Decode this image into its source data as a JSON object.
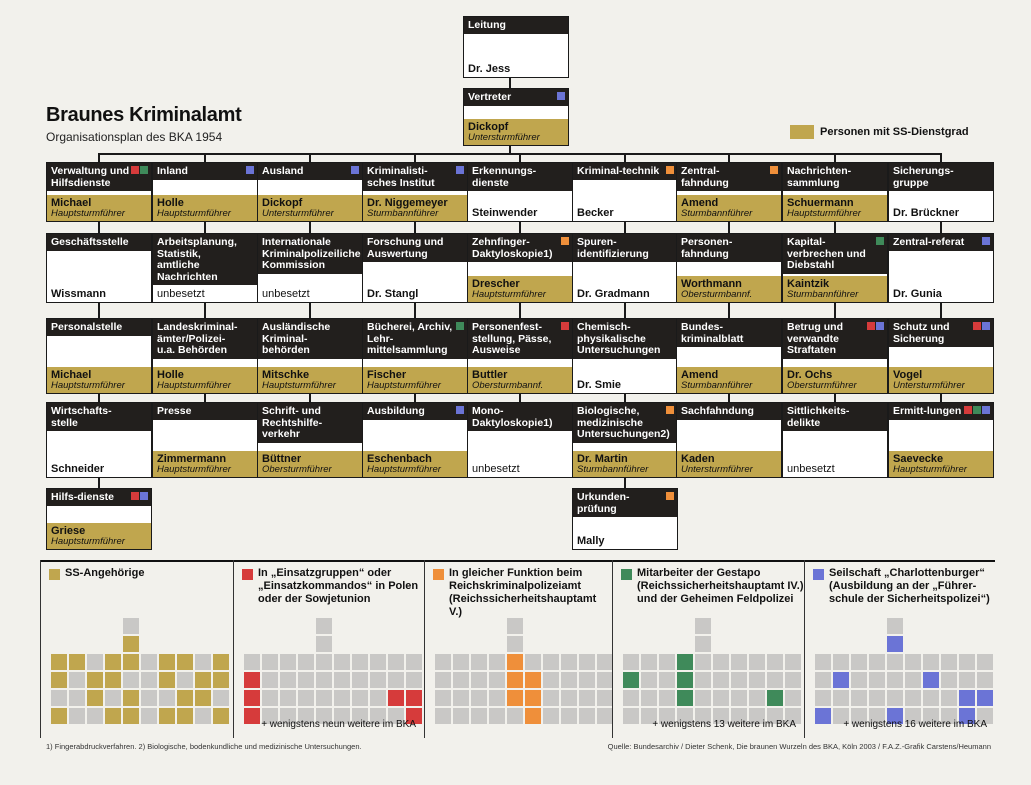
{
  "header": {
    "title": "Braunes Kriminalamt",
    "subtitle": "Organisationsplan des BKA 1954",
    "legend_label": "Personen mit SS-Dienstgrad"
  },
  "colors": {
    "ss": "#c0a64e",
    "einsatzgruppen": "#d63b3b",
    "rsha5": "#ef8f3a",
    "gestapo": "#3f8a5a",
    "charlottenburger": "#6b74d6",
    "empty": "#c9c8c6",
    "dark": "#221f1d"
  },
  "top": [
    {
      "head": "Leitung",
      "name": "Dr. Jess",
      "rank": "",
      "ss": false,
      "marks": []
    },
    {
      "head": "Vertreter",
      "name": "Dickopf",
      "rank": "Untersturmführer",
      "ss": true,
      "marks": [
        "blue"
      ]
    }
  ],
  "columns": [
    [
      {
        "head": "Verwaltung und Hilfsdienste",
        "name": "Michael",
        "rank": "Hauptsturmführer",
        "ss": true,
        "marks": [
          "red",
          "green"
        ]
      },
      {
        "head": "Geschäftsstelle",
        "name": "Wissmann",
        "rank": "",
        "ss": false,
        "marks": []
      },
      {
        "head": "Personalstelle",
        "name": "Michael",
        "rank": "Hauptsturmführer",
        "ss": true,
        "marks": []
      },
      {
        "head": "Wirtschafts-stelle",
        "name": "Schneider",
        "rank": "",
        "ss": false,
        "marks": []
      },
      {
        "head": "Hilfs-dienste",
        "name": "Griese",
        "rank": "Hauptsturmführer",
        "ss": true,
        "marks": [
          "red",
          "blue"
        ]
      }
    ],
    [
      {
        "head": "Inland",
        "name": "Holle",
        "rank": "Hauptsturmführer",
        "ss": true,
        "marks": [
          "blue"
        ]
      },
      {
        "head": "Arbeitsplanung, Statistik, amtliche Nachrichten",
        "name": "unbesetzt",
        "rank": "",
        "ss": false,
        "empty": true,
        "marks": []
      },
      {
        "head": "Landeskriminal-ämter/Polizei-u.a. Behörden",
        "name": "Holle",
        "rank": "Hauptsturmführer",
        "ss": true,
        "marks": []
      },
      {
        "head": "Presse",
        "name": "Zimmermann",
        "rank": "Hauptsturmführer",
        "ss": true,
        "marks": []
      }
    ],
    [
      {
        "head": "Ausland",
        "name": "Dickopf",
        "rank": "Untersturmführer",
        "ss": true,
        "marks": [
          "blue"
        ]
      },
      {
        "head": "Internationale Kriminalpolizeiliche Kommission",
        "name": "unbesetzt",
        "rank": "",
        "ss": false,
        "empty": true,
        "marks": []
      },
      {
        "head": "Ausländische Kriminal-behörden",
        "name": "Mitschke",
        "rank": "Hauptsturmführer",
        "ss": true,
        "marks": []
      },
      {
        "head": "Schrift- und Rechtshilfe-verkehr",
        "name": "Büttner",
        "rank": "Obersturmführer",
        "ss": true,
        "marks": []
      }
    ],
    [
      {
        "head": "Kriminalisti-sches Institut",
        "name": "Dr. Niggemeyer",
        "rank": "Sturmbannführer",
        "ss": true,
        "marks": [
          "blue"
        ]
      },
      {
        "head": "Forschung und Auswertung",
        "name": "Dr. Stangl",
        "rank": "",
        "ss": false,
        "marks": []
      },
      {
        "head": "Bücherei, Archiv, Lehr-mittelsammlung",
        "name": "Fischer",
        "rank": "Hauptsturmführer",
        "ss": true,
        "marks": [
          "green"
        ]
      },
      {
        "head": "Ausbildung",
        "name": "Eschenbach",
        "rank": "Hauptsturmführer",
        "ss": true,
        "marks": [
          "blue"
        ]
      }
    ],
    [
      {
        "head": "Erkennungs-dienste",
        "name": "Steinwender",
        "rank": "",
        "ss": false,
        "marks": []
      },
      {
        "head": "Zehnfinger-Daktyloskopie1)",
        "name": "Drescher",
        "rank": "Hauptsturmführer",
        "ss": true,
        "marks": [
          "orange"
        ]
      },
      {
        "head": "Personenfest-stellung, Pässe, Ausweise",
        "name": "Buttler",
        "rank": "Obersturmbannf.",
        "ss": true,
        "marks": [
          "red"
        ]
      },
      {
        "head": "Mono-Daktyloskopie1)",
        "name": "unbesetzt",
        "rank": "",
        "ss": false,
        "empty": true,
        "marks": []
      }
    ],
    [
      {
        "head": "Kriminal-technik",
        "name": "Becker",
        "rank": "",
        "ss": false,
        "marks": [
          "orange"
        ]
      },
      {
        "head": "Spuren-identifizierung",
        "name": "Dr. Gradmann",
        "rank": "",
        "ss": false,
        "marks": []
      },
      {
        "head": "Chemisch-physikalische Untersuchungen",
        "name": "Dr. Smie",
        "rank": "",
        "ss": false,
        "marks": []
      },
      {
        "head": "Biologische, medizinische Untersuchungen2)",
        "name": "Dr. Martin",
        "rank": "Sturmbannführer",
        "ss": true,
        "marks": [
          "orange"
        ]
      },
      {
        "head": "Urkunden-prüfung",
        "name": "Mally",
        "rank": "",
        "ss": false,
        "marks": [
          "orange"
        ]
      }
    ],
    [
      {
        "head": "Zentral-fahndung",
        "name": "Amend",
        "rank": "Sturmbannführer",
        "ss": true,
        "marks": [
          "orange"
        ]
      },
      {
        "head": "Personen-fahndung",
        "name": "Worthmann",
        "rank": "Obersturmbannf.",
        "ss": true,
        "marks": []
      },
      {
        "head": "Bundes-kriminalblatt",
        "name": "Amend",
        "rank": "Sturmbannführer",
        "ss": true,
        "marks": []
      },
      {
        "head": "Sachfahndung",
        "name": "Kaden",
        "rank": "Untersturmführer",
        "ss": true,
        "marks": []
      }
    ],
    [
      {
        "head": "Nachrichten-sammlung",
        "name": "Schuermann",
        "rank": "Hauptsturmführer",
        "ss": true,
        "marks": []
      },
      {
        "head": "Kapital-verbrechen und Diebstahl",
        "name": "Kaintzik",
        "rank": "Sturmbannführer",
        "ss": true,
        "marks": [
          "green"
        ]
      },
      {
        "head": "Betrug und verwandte Straftaten",
        "name": "Dr. Ochs",
        "rank": "Obersturmführer",
        "ss": true,
        "marks": [
          "red",
          "blue"
        ]
      },
      {
        "head": "Sittlichkeits-delikte",
        "name": "unbesetzt",
        "rank": "",
        "ss": false,
        "empty": true,
        "marks": []
      }
    ],
    [
      {
        "head": "Sicherungs-gruppe",
        "name": "Dr. Brückner",
        "rank": "",
        "ss": false,
        "marks": []
      },
      {
        "head": "Zentral-referat",
        "name": "Dr. Gunia",
        "rank": "",
        "ss": false,
        "marks": [
          "blue"
        ]
      },
      {
        "head": "Schutz und Sicherung",
        "name": "Vogel",
        "rank": "Untersturmführer",
        "ss": true,
        "marks": [
          "red",
          "blue"
        ]
      },
      {
        "head": "Ermitt-lungen",
        "name": "Saevecke",
        "rank": "Hauptsturmführer",
        "ss": true,
        "marks": [
          "red",
          "green",
          "blue"
        ]
      }
    ]
  ],
  "panels": [
    {
      "label": "SS-Angehörige",
      "color": "ss",
      "note": "",
      "highlight": []
    },
    {
      "label": "In „Einsatzgruppen“ oder „Einsatzkommandos“ in Polen oder der Sowjetunion",
      "color": "einsatzgruppen",
      "note": "+ wenigstens neun weitere im BKA",
      "highlight": []
    },
    {
      "label": "In gleicher Funktion beim Reichskriminalpolizeiamt (Reichssicherheitshauptamt V.)",
      "color": "rsha5",
      "note": "",
      "highlight": []
    },
    {
      "label": "Mitarbeiter der Gestapo (Reichssicherheitshauptamt IV.) und der Geheimen Feldpolizei",
      "color": "gestapo",
      "note": "+ wenigstens 13 weitere im BKA",
      "highlight": []
    },
    {
      "label": "Seilschaft „Charlottenburger“ (Ausbildung an der „Führer-schule der Sicherheitspolizei“)",
      "color": "charlottenburger",
      "note": "+ wenigstens 16 weitere im BKA",
      "highlight": []
    }
  ],
  "footnote": "1) Fingerabdruckverfahren. 2) Biologische, bodenkundliche und medizinische Untersuchungen.",
  "source": "Quelle: Bundesarchiv / Dieter Schenk, Die braunen Wurzeln des BKA, Köln 2003 / F.A.Z.-Grafik Carstens/Heumann"
}
